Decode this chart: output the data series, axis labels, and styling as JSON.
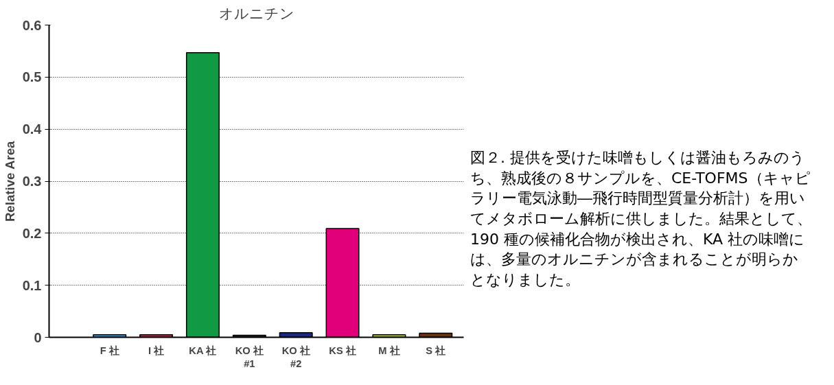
{
  "chart_data": {
    "type": "bar",
    "title": "オルニチン",
    "ylabel": "Relative Area",
    "categories": [
      "F 社",
      "I 社",
      "KA 社",
      "KO 社\n#1",
      "KO 社\n#2",
      "KS 社",
      "M 社",
      "S 社"
    ],
    "values": [
      0.005,
      0.005,
      0.547,
      0.004,
      0.009,
      0.209,
      0.005,
      0.008
    ],
    "colors": [
      "#3399dd",
      "#cc2244",
      "#119944",
      "#332211",
      "#1a2a80",
      "#e0007a",
      "#bbcc22",
      "#663311"
    ],
    "ylim": [
      0,
      0.6
    ],
    "yticks": [
      0,
      0.1,
      0.2,
      0.3,
      0.4,
      0.5,
      0.6
    ],
    "grid": "y",
    "annotations": [
      "図２. 提供を受けた味噌もしくは醤油もろみのうち、熟成後の８サンプルを、CE-TOFMS（キャピラリー電気泳動―飛行時間型質量分析計）を用いてメタボローム解析に供しました。結果として、190 種の候補化合物が検出され、KA 社の味噌には、多量のオルニチンが含まれることが明らかとなりました。"
    ]
  }
}
